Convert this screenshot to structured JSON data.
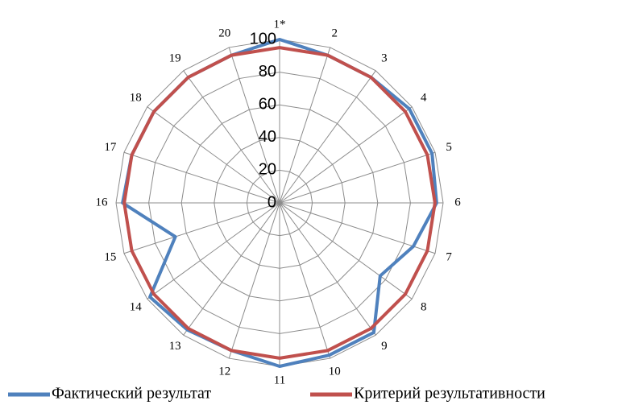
{
  "chart_data": {
    "type": "radar",
    "categories": [
      "1*",
      "2",
      "3",
      "4",
      "5",
      "6",
      "7",
      "8",
      "9",
      "10",
      "11",
      "12",
      "13",
      "14",
      "15",
      "16",
      "17",
      "18",
      "19",
      "20"
    ],
    "series": [
      {
        "name": "Фактический результат",
        "color": "#4f81bd",
        "values": [
          100,
          95,
          95,
          98,
          98,
          96,
          86,
          76,
          98,
          98,
          100,
          95,
          96,
          98,
          67,
          96,
          95,
          95,
          95,
          95
        ]
      },
      {
        "name": "Критерий результативности",
        "color": "#c0504d",
        "values": [
          95,
          95,
          95,
          95,
          95,
          95,
          95,
          95,
          95,
          95,
          95,
          95,
          95,
          95,
          95,
          95,
          95,
          95,
          95,
          95
        ]
      }
    ],
    "ylim": [
      0,
      100
    ],
    "yticks": [
      0,
      20,
      40,
      60,
      80,
      100
    ],
    "grid": true,
    "legend": "bottom"
  }
}
